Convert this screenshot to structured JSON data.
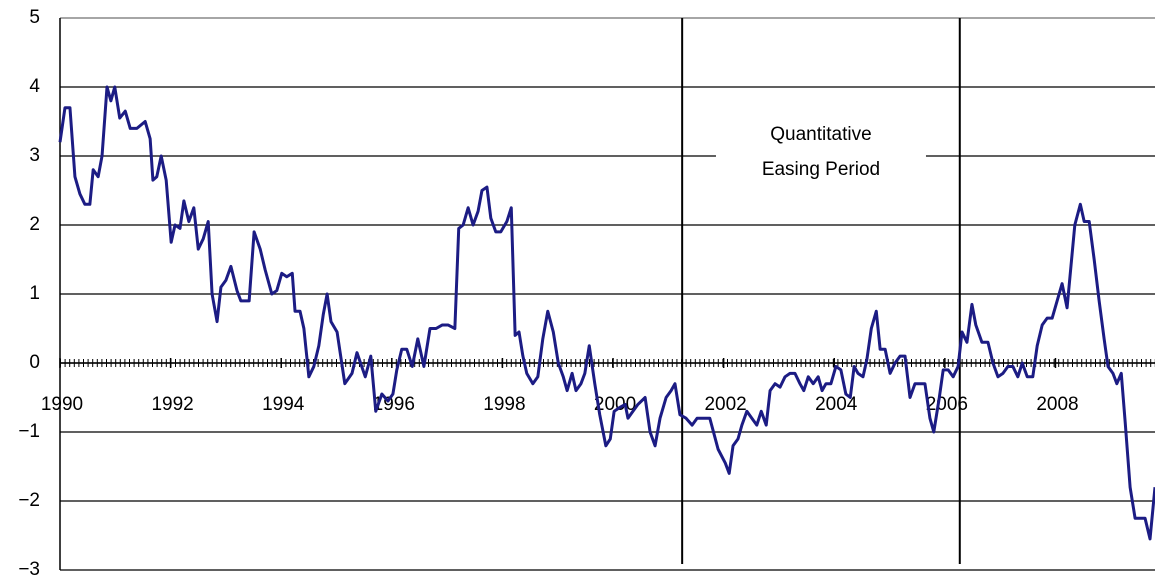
{
  "chart_data": {
    "type": "line",
    "annotation": [
      "Quantitative",
      "Easing Period"
    ],
    "period_lines_x": [
      2001.25,
      2006.27
    ],
    "xlim": [
      1990,
      2009.8
    ],
    "xticks": [
      1990,
      1992,
      1994,
      1996,
      1998,
      2000,
      2002,
      2004,
      2006,
      2008
    ],
    "ylim": [
      -3,
      5
    ],
    "yticks": [
      {
        "value": -3,
        "label": "−3"
      },
      {
        "value": -2,
        "label": "−2"
      },
      {
        "value": -1,
        "label": "−1"
      },
      0,
      1,
      2,
      3,
      4,
      5
    ],
    "grid": true,
    "series": [
      {
        "color": "#1c1c84",
        "x": [
          1990.0,
          1990.09,
          1990.18,
          1990.27,
          1990.36,
          1990.45,
          1990.54,
          1990.6,
          1990.69,
          1990.76,
          1990.85,
          1990.92,
          1990.99,
          1991.08,
          1991.18,
          1991.27,
          1991.39,
          1991.54,
          1991.63,
          1991.68,
          1991.75,
          1991.83,
          1991.92,
          1992.01,
          1992.08,
          1992.17,
          1992.24,
          1992.33,
          1992.42,
          1992.5,
          1992.59,
          1992.68,
          1992.75,
          1992.84,
          1992.91,
          1993.0,
          1993.09,
          1993.2,
          1993.27,
          1993.42,
          1993.51,
          1993.62,
          1993.71,
          1993.83,
          1993.92,
          1994.01,
          1994.1,
          1994.2,
          1994.25,
          1994.34,
          1994.41,
          1994.5,
          1994.59,
          1994.68,
          1994.76,
          1994.83,
          1994.9,
          1995.01,
          1995.15,
          1995.28,
          1995.37,
          1995.52,
          1995.62,
          1995.71,
          1995.82,
          1995.93,
          1996.02,
          1996.09,
          1996.18,
          1996.27,
          1996.37,
          1996.47,
          1996.58,
          1996.69,
          1996.8,
          1996.91,
          1997.02,
          1997.14,
          1997.21,
          1997.29,
          1997.38,
          1997.47,
          1997.56,
          1997.63,
          1997.72,
          1997.79,
          1997.88,
          1997.97,
          1998.08,
          1998.16,
          1998.23,
          1998.3,
          1998.37,
          1998.44,
          1998.55,
          1998.64,
          1998.73,
          1998.82,
          1998.92,
          1999.01,
          1999.1,
          1999.17,
          1999.26,
          1999.33,
          1999.42,
          1999.49,
          1999.57,
          1999.67,
          1999.76,
          1999.87,
          1999.95,
          2000.02,
          2000.11,
          2000.22,
          2000.27,
          2000.36,
          2000.45,
          2000.58,
          2000.67,
          2000.76,
          2000.85,
          2000.96,
          2001.05,
          2001.12,
          2001.21,
          2001.32,
          2001.43,
          2001.52,
          2001.61,
          2001.75,
          2001.9,
          2002.03,
          2002.1,
          2002.17,
          2002.26,
          2002.33,
          2002.42,
          2002.51,
          2002.6,
          2002.68,
          2002.77,
          2002.84,
          2002.93,
          2003.02,
          2003.11,
          2003.2,
          2003.29,
          2003.38,
          2003.45,
          2003.53,
          2003.62,
          2003.71,
          2003.78,
          2003.85,
          2003.94,
          2004.03,
          2004.12,
          2004.21,
          2004.29,
          2004.36,
          2004.43,
          2004.52,
          2004.59,
          2004.67,
          2004.76,
          2004.83,
          2004.92,
          2005.01,
          2005.1,
          2005.19,
          2005.28,
          2005.37,
          2005.46,
          2005.55,
          2005.64,
          2005.73,
          2005.8,
          2005.9,
          2005.97,
          2006.06,
          2006.15,
          2006.24,
          2006.31,
          2006.4,
          2006.49,
          2006.56,
          2006.67,
          2006.78,
          2006.87,
          2006.96,
          2007.05,
          2007.14,
          2007.23,
          2007.32,
          2007.4,
          2007.49,
          2007.59,
          2007.67,
          2007.76,
          2007.85,
          2007.94,
          2008.03,
          2008.12,
          2008.21,
          2008.28,
          2008.35,
          2008.45,
          2008.52,
          2008.61,
          2008.7,
          2008.79,
          2008.88,
          2008.95,
          2009.04,
          2009.11,
          2009.19,
          2009.26,
          2009.35,
          2009.44,
          2009.53,
          2009.62,
          2009.71,
          2009.8
        ],
        "values": [
          3.2,
          3.7,
          3.7,
          2.7,
          2.45,
          2.3,
          2.3,
          2.8,
          2.7,
          3.0,
          4.0,
          3.8,
          4.0,
          3.55,
          3.65,
          3.4,
          3.4,
          3.5,
          3.25,
          2.65,
          2.7,
          3.0,
          2.65,
          1.75,
          2.0,
          1.95,
          2.35,
          2.05,
          2.25,
          1.65,
          1.8,
          2.05,
          1.0,
          0.6,
          1.1,
          1.2,
          1.4,
          1.05,
          0.9,
          0.9,
          1.9,
          1.65,
          1.35,
          1.0,
          1.05,
          1.3,
          1.25,
          1.3,
          0.75,
          0.75,
          0.5,
          -0.2,
          -0.05,
          0.25,
          0.7,
          1.0,
          0.6,
          0.45,
          -0.3,
          -0.15,
          0.15,
          -0.2,
          0.1,
          -0.7,
          -0.45,
          -0.55,
          -0.45,
          -0.1,
          0.2,
          0.2,
          -0.05,
          0.35,
          -0.05,
          0.5,
          0.5,
          0.55,
          0.55,
          0.5,
          1.95,
          2.0,
          2.25,
          2.0,
          2.2,
          2.5,
          2.55,
          2.1,
          1.9,
          1.9,
          2.05,
          2.25,
          0.4,
          0.45,
          0.1,
          -0.15,
          -0.3,
          -0.2,
          0.35,
          0.75,
          0.45,
          0,
          -0.2,
          -0.4,
          -0.15,
          -0.4,
          -0.3,
          -0.15,
          0.25,
          -0.3,
          -0.75,
          -1.2,
          -1.1,
          -0.7,
          -0.65,
          -0.6,
          -0.8,
          -0.7,
          -0.6,
          -0.5,
          -1.0,
          -1.2,
          -0.8,
          -0.5,
          -0.4,
          -0.3,
          -0.75,
          -0.8,
          -0.9,
          -0.8,
          -0.8,
          -0.8,
          -1.25,
          -1.45,
          -1.6,
          -1.2,
          -1.1,
          -0.9,
          -0.7,
          -0.8,
          -0.9,
          -0.7,
          -0.9,
          -0.4,
          -0.3,
          -0.35,
          -0.2,
          -0.15,
          -0.15,
          -0.3,
          -0.4,
          -0.2,
          -0.3,
          -0.2,
          -0.4,
          -0.3,
          -0.3,
          -0.05,
          -0.1,
          -0.45,
          -0.5,
          -0.05,
          -0.15,
          -0.2,
          0.05,
          0.5,
          0.75,
          0.2,
          0.2,
          -0.15,
          0,
          0.1,
          0.1,
          -0.5,
          -0.3,
          -0.3,
          -0.3,
          -0.8,
          -1.0,
          -0.5,
          -0.1,
          -0.1,
          -0.2,
          -0.05,
          0.45,
          0.3,
          0.85,
          0.55,
          0.3,
          0.3,
          0,
          -0.2,
          -0.15,
          -0.05,
          -0.05,
          -0.2,
          0,
          -0.2,
          -0.2,
          0.25,
          0.55,
          0.65,
          0.65,
          0.9,
          1.15,
          0.8,
          1.4,
          2.0,
          2.3,
          2.05,
          2.05,
          1.5,
          0.9,
          0.35,
          -0.05,
          -0.15,
          -0.3,
          -0.15,
          -0.85,
          -1.8,
          -2.25,
          -2.25,
          -2.25,
          -2.55,
          -1.8
        ]
      }
    ]
  }
}
